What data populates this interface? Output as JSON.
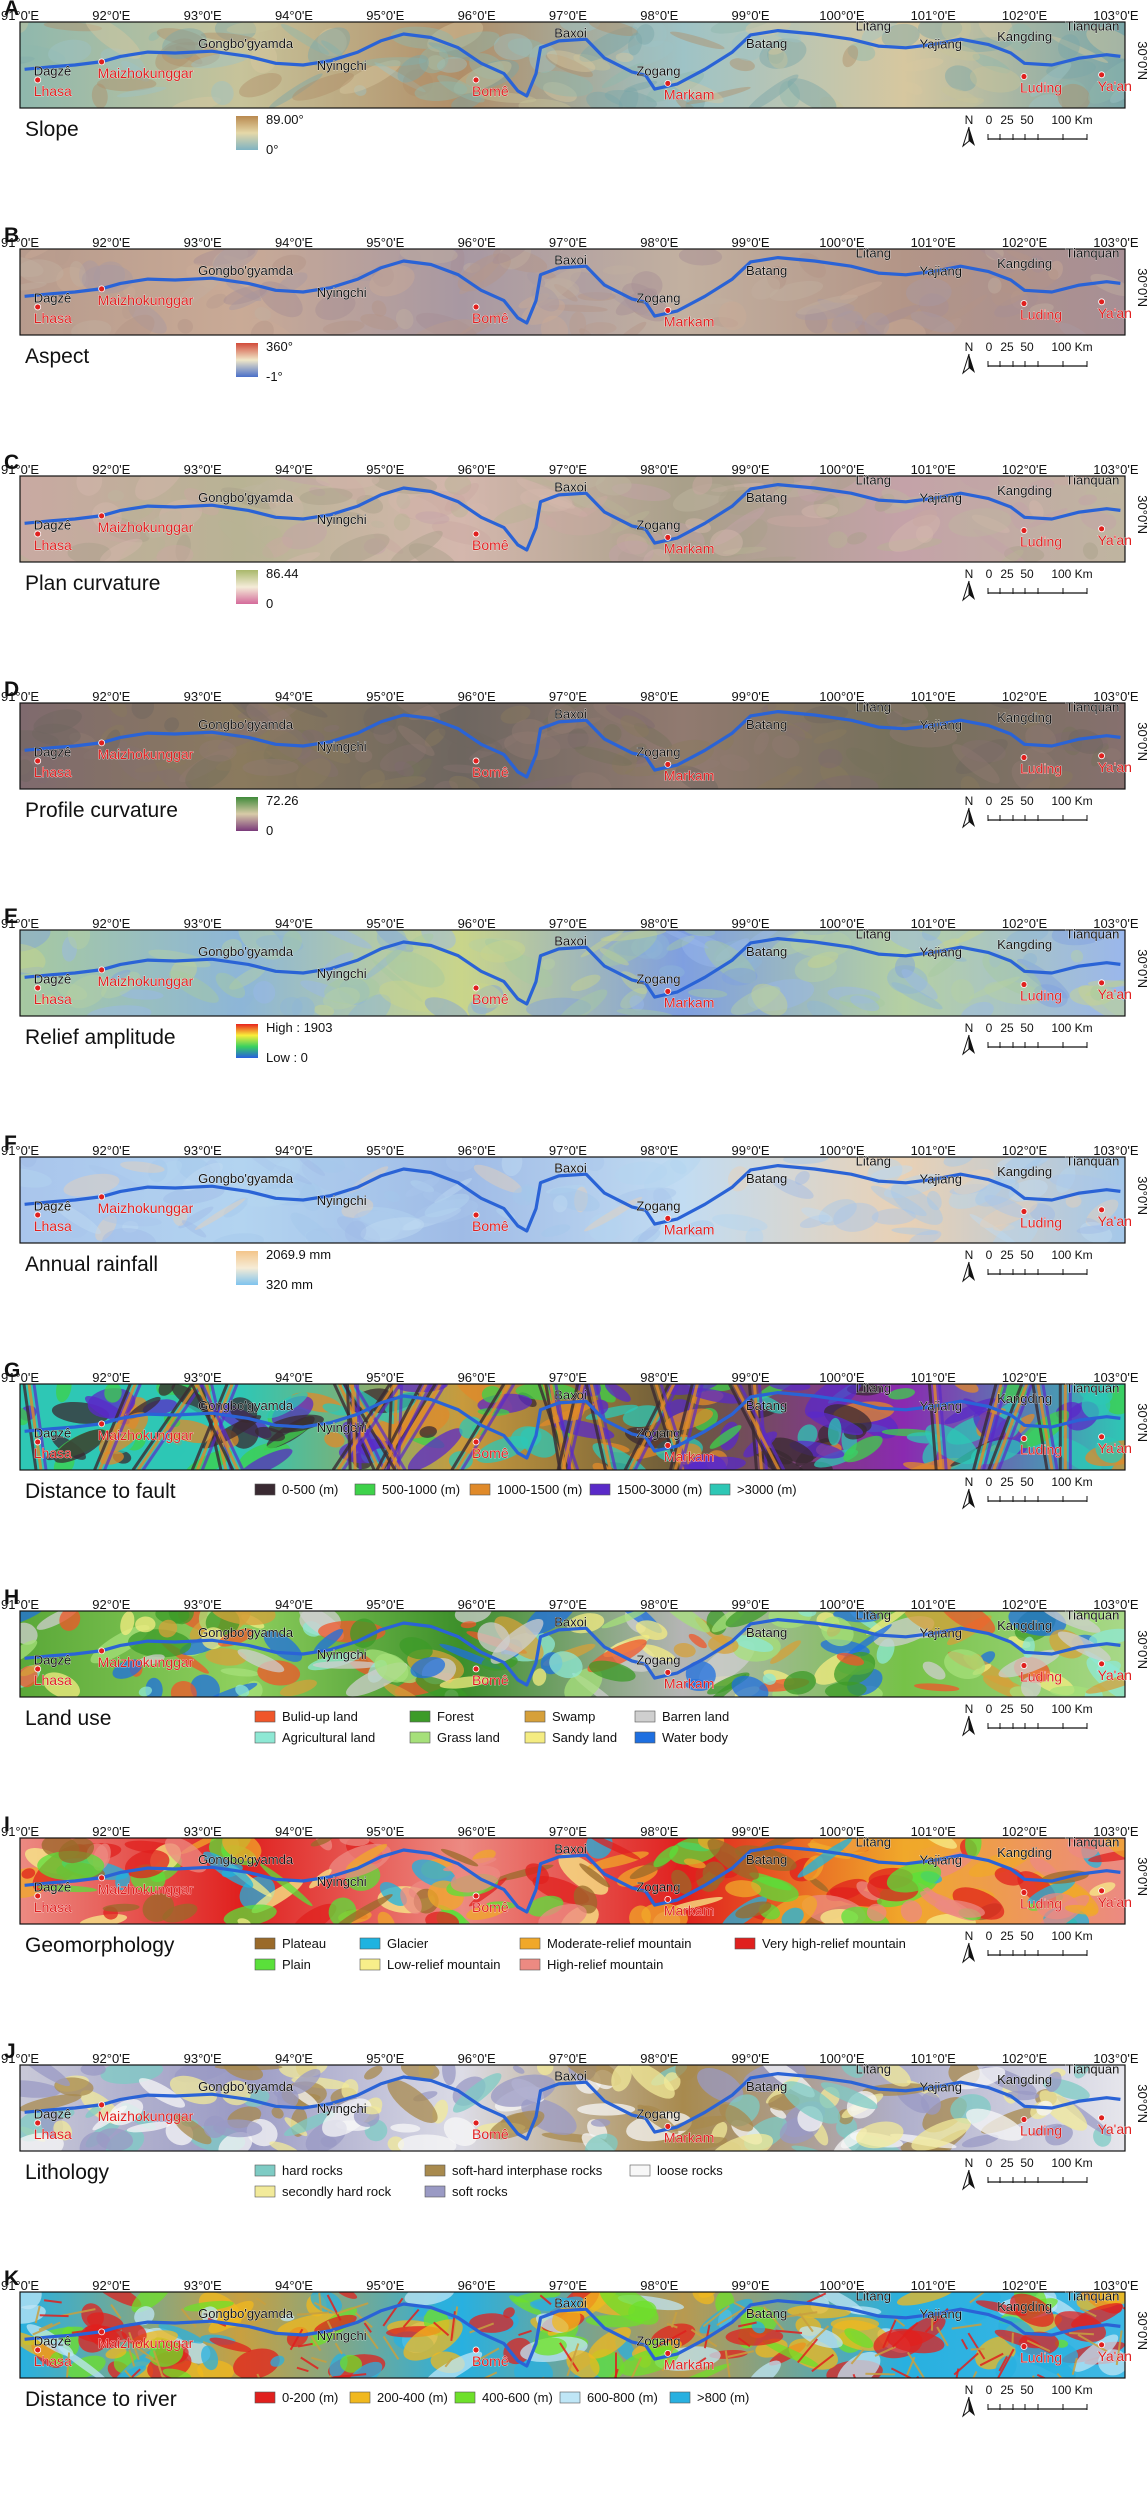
{
  "figure": {
    "lon_ticks": [
      "91°0'E",
      "92°0'E",
      "93°0'E",
      "94°0'E",
      "95°0'E",
      "96°0'E",
      "97°0'E",
      "98°0'E",
      "99°0'E",
      "100°0'E",
      "101°0'E",
      "102°0'E",
      "103°0'E"
    ],
    "lat_label": "30°0'N",
    "places_black": [
      {
        "name": "Dagzê",
        "lon": 91.15,
        "lat": 0.62
      },
      {
        "name": "Gongbo'gyamda",
        "lon": 92.95,
        "lat": 0.3
      },
      {
        "name": "Nyingchi",
        "lon": 94.25,
        "lat": 0.56
      },
      {
        "name": "Baxoi",
        "lon": 96.85,
        "lat": 0.18
      },
      {
        "name": "Zogang",
        "lon": 97.75,
        "lat": 0.62
      },
      {
        "name": "Batang",
        "lon": 98.95,
        "lat": 0.3
      },
      {
        "name": "Litang",
        "lon": 100.15,
        "lat": 0.1
      },
      {
        "name": "Yajiang",
        "lon": 100.85,
        "lat": 0.31
      },
      {
        "name": "Kangding",
        "lon": 101.7,
        "lat": 0.22
      },
      {
        "name": "Tianquan",
        "lon": 102.45,
        "lat": 0.1
      }
    ],
    "places_red": [
      {
        "name": "Lhasa",
        "lon": 91.15,
        "lat": 0.86
      },
      {
        "name": "Maizhokunggar",
        "lon": 91.85,
        "lat": 0.65
      },
      {
        "name": "Bomê",
        "lon": 95.95,
        "lat": 0.86
      },
      {
        "name": "Markam",
        "lon": 98.05,
        "lat": 0.9
      },
      {
        "name": "Luding",
        "lon": 101.95,
        "lat": 0.82
      },
      {
        "name": "Ya'an",
        "lon": 102.8,
        "lat": 0.8
      }
    ],
    "scale": {
      "north": "N",
      "ticks": [
        "0",
        "25",
        "50",
        "100 Km"
      ]
    }
  },
  "panels": [
    {
      "letter": "A",
      "title": "Slope",
      "legend": {
        "type": "gradient",
        "high": "89.00°",
        "low": "0°",
        "colors": [
          "#b9894f",
          "#e5d8a8",
          "#7fb3c2"
        ]
      },
      "map_colors": [
        "#8fb8ad",
        "#c7c39a",
        "#b08e68",
        "#9ec3c6",
        "#d6c79f",
        "#7aa6a8"
      ]
    },
    {
      "letter": "B",
      "title": "Aspect",
      "legend": {
        "type": "gradient",
        "high": "360°",
        "low": "-1°",
        "colors": [
          "#d24b3a",
          "#f0e7c8",
          "#4a6fc9"
        ]
      },
      "map_colors": [
        "#b79b8d",
        "#c9aa96",
        "#a898a2",
        "#c2b0a0",
        "#b39587",
        "#a78f95"
      ]
    },
    {
      "letter": "C",
      "title": "Plan curvature",
      "legend": {
        "type": "gradient",
        "high": "86.44",
        "low": "0",
        "colors": [
          "#a9b86b",
          "#f4ecd8",
          "#d46a9a"
        ]
      },
      "map_colors": [
        "#c9a9a2",
        "#b8b394",
        "#d4b7ad",
        "#a9a08a",
        "#c4a2a8",
        "#bfb5a0"
      ]
    },
    {
      "letter": "D",
      "title": "Profile curvature",
      "legend": {
        "type": "gradient",
        "high": "72.26",
        "low": "0",
        "colors": [
          "#3f8a3a",
          "#d8cba8",
          "#7a3a7a"
        ]
      },
      "map_colors": [
        "#7f6a6e",
        "#8a7a5e",
        "#6e6660",
        "#917a70",
        "#75705a",
        "#86706e"
      ]
    },
    {
      "letter": "E",
      "title": "Relief amplitude",
      "legend": {
        "type": "gradient",
        "high": "High : 1903",
        "low": "Low : 0",
        "colors": [
          "#e8231e",
          "#f9ee3a",
          "#38d060",
          "#2a5fe0"
        ]
      },
      "map_colors": [
        "#a7c9a0",
        "#8db6d8",
        "#c9d58a",
        "#7f9fe0",
        "#b5d0a2",
        "#9ab7ec"
      ]
    },
    {
      "letter": "F",
      "title": "Annual rainfall",
      "legend": {
        "type": "gradient",
        "high": "2069.9 mm",
        "low": "320 mm",
        "colors": [
          "#f3c58a",
          "#f6ecd6",
          "#7ec3ee"
        ]
      },
      "map_colors": [
        "#a9c5ec",
        "#b3d4f0",
        "#9fbbe6",
        "#c2dcf2",
        "#e9d1b5",
        "#a4c8ea"
      ]
    },
    {
      "letter": "G",
      "title": "Distance to fault",
      "legend": {
        "type": "classes",
        "items": [
          {
            "label": "0-500 (m)",
            "color": "#3a2a32"
          },
          {
            "label": "500-1000 (m)",
            "color": "#3ed24a"
          },
          {
            "label": "1000-1500 (m)",
            "color": "#e08a2a"
          },
          {
            "label": "1500-3000 (m)",
            "color": "#5a2ac8"
          },
          {
            "label": ">3000 (m)",
            "color": "#2ec7b5"
          }
        ]
      },
      "map_colors": [
        "#2ec7b5",
        "#2ec7b5",
        "#c89a3c",
        "#6a5a3a",
        "#8a2ab0",
        "#2ec7b5"
      ]
    },
    {
      "letter": "H",
      "title": "Land use",
      "legend": {
        "type": "classes",
        "items": [
          {
            "label": "Bulid-up land",
            "color": "#f0562a"
          },
          {
            "label": "Forest",
            "color": "#3c9b28"
          },
          {
            "label": "Swamp",
            "color": "#d6a03a"
          },
          {
            "label": "Barren land",
            "color": "#cfcfcf"
          },
          {
            "label": "Agricultural land",
            "color": "#8ee8d4"
          },
          {
            "label": "Grass land",
            "color": "#a6e07a"
          },
          {
            "label": "Sandy land",
            "color": "#f4ec82"
          },
          {
            "label": "Water body",
            "color": "#1e6fe0"
          }
        ]
      },
      "map_colors": [
        "#5aa838",
        "#8fd05e",
        "#3c8f2a",
        "#b5b5b5",
        "#76c248",
        "#a8d888"
      ]
    },
    {
      "letter": "I",
      "title": "Geomorphology",
      "legend": {
        "type": "classes",
        "items": [
          {
            "label": "Plateau",
            "color": "#9a6a2a"
          },
          {
            "label": "Glacier",
            "color": "#1eb3e0"
          },
          {
            "label": "Moderate-relief mountain",
            "color": "#f0a82a"
          },
          {
            "label": "Very high-relief mountain",
            "color": "#e0201e"
          },
          {
            "label": "Plain",
            "color": "#5ae03a"
          },
          {
            "label": "Low-relief mountain",
            "color": "#f7ee8a"
          },
          {
            "label": "High-relief mountain",
            "color": "#ec8a82"
          }
        ]
      },
      "map_colors": [
        "#ec8a82",
        "#e0201e",
        "#ec8a82",
        "#e0201e",
        "#f0a82a",
        "#ec8a82"
      ]
    },
    {
      "letter": "J",
      "title": "Lithology",
      "legend": {
        "type": "classes",
        "items": [
          {
            "label": "hard rocks",
            "color": "#7ecbc4"
          },
          {
            "label": "soft-hard interphase rocks",
            "color": "#a88a4e"
          },
          {
            "label": "loose rocks",
            "color": "#f7f7f7"
          },
          {
            "label": "secondly hard rock",
            "color": "#f2ea9a"
          },
          {
            "label": "soft rocks",
            "color": "#9a9ac4"
          }
        ]
      },
      "map_colors": [
        "#c9c9d8",
        "#9a9ac4",
        "#dcdce6",
        "#a88a4e",
        "#b0b0cc",
        "#e6e6ec"
      ]
    },
    {
      "letter": "K",
      "title": "Distance to river",
      "legend": {
        "type": "classes",
        "items": [
          {
            "label": "0-200 (m)",
            "color": "#e0201e"
          },
          {
            "label": "200-400 (m)",
            "color": "#f0b81e"
          },
          {
            "label": "400-600 (m)",
            "color": "#6ee02a"
          },
          {
            "label": "600-800 (m)",
            "color": "#bfe6f6"
          },
          {
            "label": ">800 (m)",
            "color": "#28b0e0"
          }
        ]
      },
      "map_colors": [
        "#28b0e0",
        "#c8a040",
        "#28b0e0",
        "#b89a50",
        "#28b0e0",
        "#3fb8e4"
      ]
    }
  ]
}
